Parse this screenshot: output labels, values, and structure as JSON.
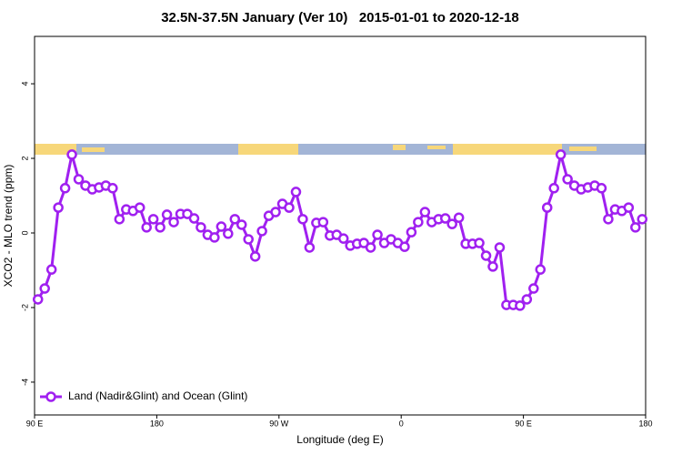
{
  "chart_data": {
    "type": "line",
    "title": "32.5N-37.5N January (Ver 10)   2015-01-01 to 2020-12-18",
    "x_label": "Longitude (deg E)",
    "y_label": "XCO2 - MLO trend (ppm)",
    "xlim": [
      90,
      540
    ],
    "ylim": [
      -4.88,
      5.27
    ],
    "xticks": [
      {
        "value": 90,
        "label": "90 E"
      },
      {
        "value": 180,
        "label": "180"
      },
      {
        "value": 270,
        "label": "90 W"
      },
      {
        "value": 360,
        "label": "0"
      },
      {
        "value": 450,
        "label": "90 E"
      },
      {
        "value": 540,
        "label": "180"
      }
    ],
    "yticks": [
      -4,
      -2,
      0,
      2,
      4
    ],
    "legend": "bottom-left",
    "x": [
      92.5,
      97.5,
      102.5,
      107.5,
      112.5,
      117.5,
      122.5,
      127.5,
      132.5,
      137.5,
      142.5,
      147.5,
      152.5,
      157.5,
      162.5,
      167.5,
      172.5,
      177.5,
      182.5,
      187.5,
      192.5,
      197.5,
      202.5,
      207.5,
      212.5,
      217.5,
      222.5,
      227.5,
      232.5,
      237.5,
      242.5,
      247.5,
      252.5,
      257.5,
      262.5,
      267.5,
      272.5,
      277.5,
      282.5,
      287.5,
      292.5,
      297.5,
      302.5,
      307.5,
      312.5,
      317.5,
      322.5,
      327.5,
      332.5,
      337.5,
      342.5,
      347.5,
      352.5,
      357.5,
      362.5,
      367.5,
      372.5,
      377.5,
      382.5,
      387.5,
      392.5,
      397.5,
      402.5,
      407.5,
      412.5,
      417.5,
      422.5,
      427.5,
      432.5,
      437.5,
      442.5,
      447.5,
      452.5,
      457.5,
      462.5,
      467.5,
      472.5,
      477.5,
      482.5,
      487.5,
      492.5,
      497.5,
      502.5,
      507.5,
      512.5,
      517.5,
      522.5,
      527.5,
      532.5,
      537.5
    ],
    "series": [
      {
        "name": "Land (Nadir&Glint) and Ocean (Glint)",
        "color": "#a020f0",
        "values": [
          -1.78,
          -1.49,
          -0.98,
          0.68,
          1.2,
          2.1,
          1.44,
          1.27,
          1.17,
          1.22,
          1.27,
          1.2,
          0.37,
          0.63,
          0.59,
          0.68,
          0.15,
          0.37,
          0.15,
          0.49,
          0.29,
          0.51,
          0.51,
          0.39,
          0.15,
          -0.05,
          -0.12,
          0.17,
          -0.02,
          0.37,
          0.22,
          -0.17,
          -0.63,
          0.05,
          0.46,
          0.56,
          0.78,
          0.68,
          1.1,
          0.37,
          -0.39,
          0.27,
          0.29,
          -0.07,
          -0.05,
          -0.15,
          -0.34,
          -0.29,
          -0.27,
          -0.39,
          -0.05,
          -0.27,
          -0.17,
          -0.27,
          -0.37,
          0.02,
          0.29,
          0.56,
          0.29,
          0.37,
          0.39,
          0.24,
          0.41,
          -0.29,
          -0.29,
          -0.27,
          -0.61,
          -0.9,
          -0.39,
          -1.93,
          -1.93,
          -1.95,
          -1.78,
          -1.49,
          -0.98,
          0.68,
          1.2,
          2.1,
          1.44,
          1.27,
          1.17,
          1.22,
          1.27,
          1.2,
          0.37,
          0.63,
          0.59,
          0.68,
          0.15,
          0.37
        ]
      }
    ]
  }
}
